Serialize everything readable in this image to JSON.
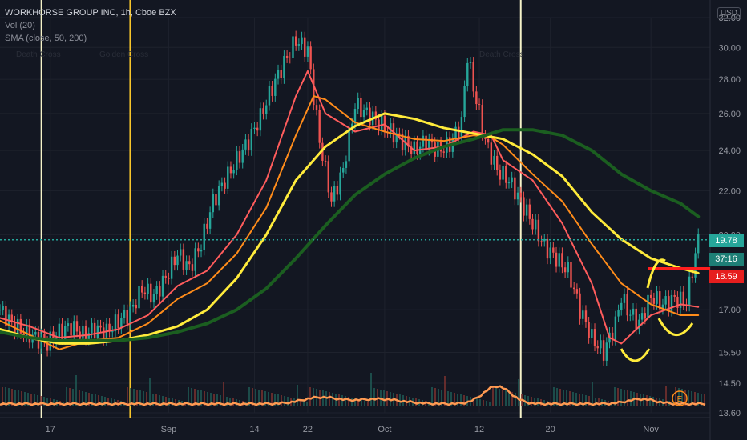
{
  "legend": {
    "title": "WORKHORSE GROUP INC, 1h, Cboe BZX",
    "volume": "Vol (20)",
    "sma": "SMA (close, 50, 200)"
  },
  "currency": "USD",
  "annotations": {
    "left_1": "Death Cross",
    "left_2": "Golden Cross",
    "mid": "Death Cross"
  },
  "price_tags": {
    "last": "19.78",
    "countdown": "37:16",
    "level": "18.59"
  },
  "colors": {
    "background": "#131722",
    "up": "#26a69a",
    "down": "#ef5350",
    "sma_short": "#ff5c5c",
    "sma_mid": "#ff8c1a",
    "sma_50": "#ffeb3b",
    "sma_200": "#1b5e20",
    "volume_ma": "#ff9a52",
    "level": "#ff1e1e"
  },
  "chart_data": {
    "type": "line",
    "title": "WORKHORSE GROUP INC, 1h, Cboe BZX",
    "y_axis": {
      "scale": "log",
      "ylim": [
        13.6,
        32.0
      ],
      "ticks": [
        "32.00",
        "30.00",
        "28.00",
        "26.00",
        "24.00",
        "22.00",
        "20.00",
        "17.00",
        "15.50",
        "14.50",
        "13.60"
      ]
    },
    "x_axis": {
      "ticks": [
        "17",
        "Sep",
        "14",
        "22",
        "Oct",
        "12",
        "20",
        "Nov"
      ]
    },
    "x_positions_ticks": [
      17,
      57,
      86,
      104,
      130,
      162,
      186,
      220
    ],
    "xlim": [
      0,
      240
    ],
    "price": {
      "x": [
        0,
        4,
        8,
        12,
        16,
        20,
        24,
        28,
        32,
        36,
        40,
        44,
        48,
        52,
        56,
        60,
        64,
        68,
        72,
        76,
        80,
        84,
        88,
        92,
        96,
        100,
        104,
        106,
        108,
        112,
        116,
        120,
        124,
        128,
        132,
        136,
        140,
        144,
        148,
        152,
        156,
        158,
        160,
        162,
        164,
        168,
        172,
        176,
        180,
        184,
        188,
        192,
        196,
        200,
        204,
        208,
        210,
        212,
        216,
        220,
        224,
        228,
        232,
        236
      ],
      "close": [
        17.0,
        16.5,
        16.2,
        16.0,
        15.8,
        16.2,
        16.4,
        16.1,
        16.3,
        16.2,
        16.6,
        16.9,
        17.8,
        17.5,
        18.2,
        19.2,
        18.6,
        19.6,
        21.5,
        22.5,
        23.5,
        24.5,
        25.8,
        27.5,
        29.0,
        30.5,
        29.8,
        27.0,
        24.5,
        21.5,
        23.0,
        26.5,
        26.0,
        25.5,
        25.0,
        24.5,
        24.0,
        24.5,
        24.0,
        24.3,
        25.5,
        29.5,
        27.5,
        26.0,
        24.5,
        23.0,
        22.5,
        21.5,
        20.5,
        19.5,
        19.0,
        18.5,
        17.0,
        16.0,
        15.5,
        16.5,
        17.5,
        17.0,
        16.5,
        17.5,
        17.2,
        17.4,
        17.3,
        19.78
      ]
    },
    "series": [
      {
        "x": [
          0,
          10,
          20,
          30,
          40,
          50,
          60,
          70,
          80,
          90,
          100,
          104,
          110,
          120,
          130,
          140,
          150,
          160,
          166,
          170,
          180,
          190,
          200,
          206,
          210,
          220,
          230,
          236
        ],
        "values": [
          16.7,
          16.4,
          16.0,
          16.1,
          16.3,
          16.8,
          17.9,
          18.5,
          20.0,
          22.5,
          27.0,
          28.5,
          26.0,
          25.0,
          25.4,
          24.0,
          24.2,
          25.0,
          24.8,
          23.5,
          22.5,
          20.5,
          18.0,
          16.0,
          15.8,
          16.8,
          17.2,
          17.1
        ]
      },
      {
        "x": [
          0,
          10,
          20,
          30,
          40,
          50,
          60,
          70,
          80,
          90,
          100,
          106,
          110,
          120,
          130,
          140,
          150,
          160,
          166,
          170,
          180,
          190,
          200,
          210,
          220,
          230,
          236
        ],
        "values": [
          16.6,
          16.1,
          15.6,
          15.9,
          16.0,
          16.5,
          17.4,
          18.0,
          19.2,
          21.2,
          24.8,
          27.0,
          26.8,
          25.5,
          25.0,
          24.6,
          24.5,
          24.8,
          24.7,
          24.3,
          22.8,
          21.5,
          19.6,
          18.0,
          17.2,
          16.8,
          16.8
        ]
      },
      {
        "x": [
          0,
          10,
          20,
          30,
          40,
          50,
          60,
          70,
          80,
          90,
          100,
          110,
          120,
          130,
          140,
          150,
          160,
          170,
          180,
          190,
          200,
          210,
          220,
          230,
          236
        ],
        "values": [
          16.3,
          16.0,
          15.8,
          15.8,
          15.9,
          16.1,
          16.4,
          17.0,
          18.2,
          20.0,
          22.5,
          24.2,
          25.3,
          26.0,
          25.7,
          25.2,
          24.9,
          24.6,
          23.8,
          22.7,
          21.0,
          19.8,
          19.0,
          18.6,
          18.4
        ]
      },
      {
        "x": [
          0,
          10,
          20,
          30,
          40,
          50,
          60,
          70,
          80,
          90,
          100,
          110,
          120,
          130,
          140,
          150,
          160,
          170,
          180,
          190,
          200,
          210,
          220,
          230,
          236
        ],
        "values": [
          16.2,
          16.0,
          15.9,
          15.9,
          15.9,
          16.0,
          16.2,
          16.5,
          17.0,
          17.8,
          19.0,
          20.4,
          21.8,
          22.8,
          23.6,
          24.2,
          24.6,
          25.1,
          25.1,
          24.8,
          24.0,
          22.8,
          22.0,
          21.4,
          20.8
        ]
      }
    ],
    "vertical_markers_x": [
      14,
      44,
      176
    ]
  }
}
